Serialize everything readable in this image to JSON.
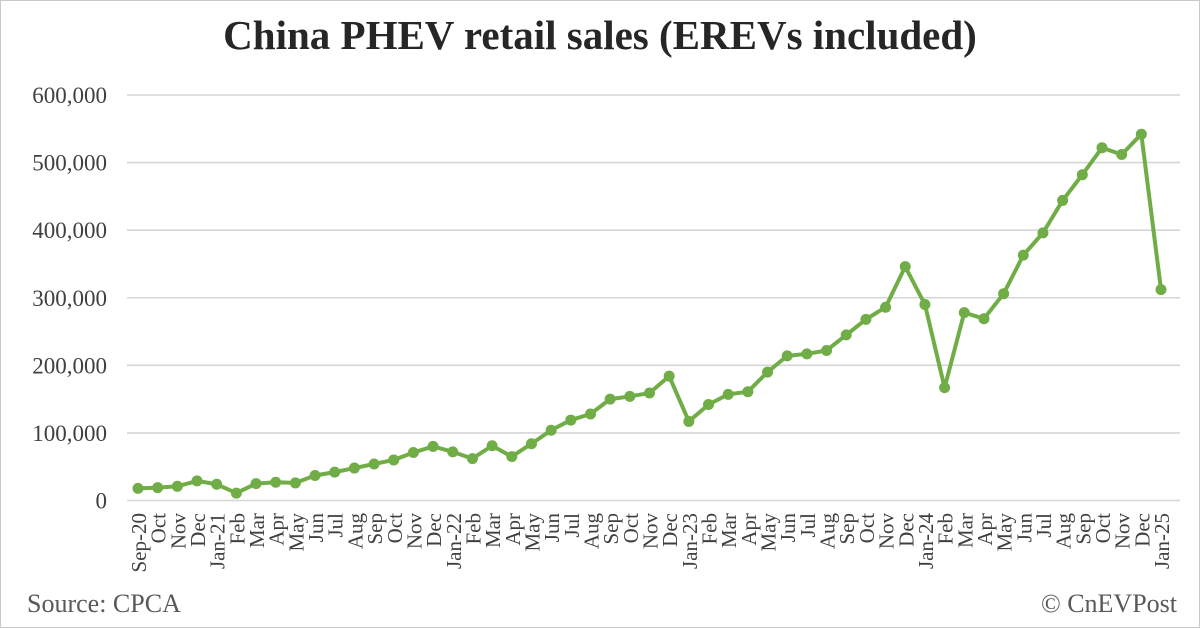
{
  "title": "China PHEV retail sales (EREVs included)",
  "footer": {
    "source": "Source: CPCA",
    "credit": "© CnEVPost"
  },
  "chart_data": {
    "type": "line",
    "title": "China PHEV retail sales (EREVs included)",
    "xlabel": "",
    "ylabel": "",
    "ylim": [
      0,
      600000
    ],
    "ytick_step": 100000,
    "grid": true,
    "legend_position": "none",
    "line_color": "#70AD47",
    "grid_color": "#d6d6d6",
    "axis_text_color": "#404040",
    "categories": [
      "Sep-20",
      "Oct",
      "Nov",
      "Dec",
      "Jan-21",
      "Feb",
      "Mar",
      "Apr",
      "May",
      "Jun",
      "Jul",
      "Aug",
      "Sep",
      "Oct",
      "Nov",
      "Dec",
      "Jan-22",
      "Feb",
      "Mar",
      "Apr",
      "May",
      "Jun",
      "Jul",
      "Aug",
      "Sep",
      "Oct",
      "Nov",
      "Dec",
      "Jan-23",
      "Feb",
      "Mar",
      "Apr",
      "May",
      "Jun",
      "Jul",
      "Aug",
      "Sep",
      "Oct",
      "Nov",
      "Dec",
      "Jan-24",
      "Feb",
      "Mar",
      "Apr",
      "May",
      "Jun",
      "Jul",
      "Aug",
      "Sep",
      "Oct",
      "Nov",
      "Dec",
      "Jan-25"
    ],
    "values": [
      18000,
      19000,
      21000,
      29000,
      24000,
      11000,
      25000,
      27000,
      26000,
      37000,
      42000,
      48000,
      54000,
      60000,
      71000,
      80000,
      72000,
      62000,
      81000,
      65000,
      84000,
      104000,
      119000,
      128000,
      150000,
      154000,
      159000,
      184000,
      117000,
      142000,
      157000,
      161000,
      190000,
      214000,
      217000,
      222000,
      245000,
      268000,
      286000,
      346000,
      290000,
      167000,
      278000,
      269000,
      306000,
      363000,
      396000,
      444000,
      482000,
      522000,
      512000,
      542000,
      312000
    ]
  }
}
